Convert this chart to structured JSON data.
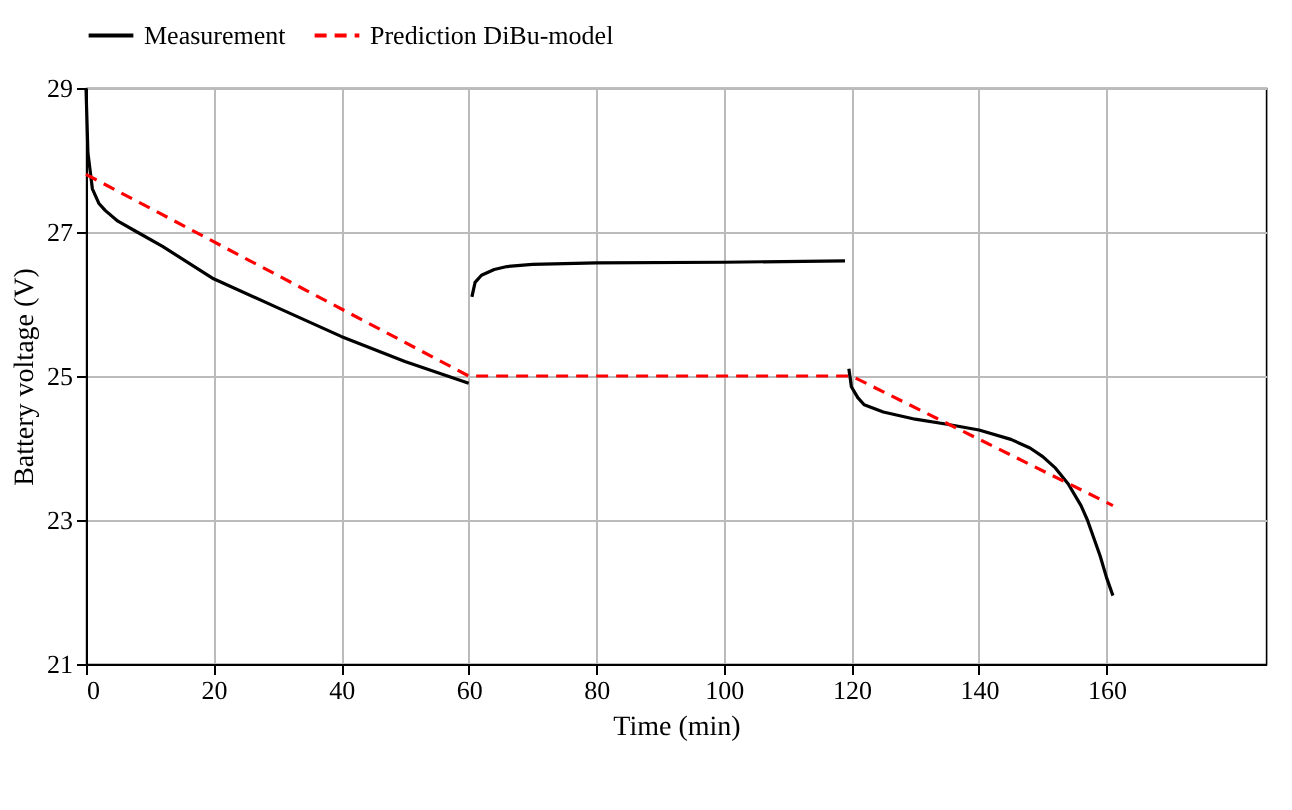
{
  "chart_data": {
    "type": "line",
    "xlabel": "Time (min)",
    "ylabel": "Battery voltage (V)",
    "xlim": [
      0,
      185
    ],
    "ylim": [
      21,
      29
    ],
    "xticks": [
      0,
      20,
      40,
      60,
      80,
      100,
      120,
      140,
      160
    ],
    "yticks": [
      21,
      23,
      25,
      27,
      29
    ],
    "grid": true,
    "legend": "top",
    "series": [
      {
        "name": "Measurement",
        "color": "#000000",
        "line_style": "solid",
        "x": [
          0,
          0.3,
          1,
          2,
          3,
          5,
          8,
          12,
          20,
          30,
          40,
          50,
          60,
          60.1,
          60.5,
          61,
          62,
          64,
          66,
          70,
          80,
          100,
          119,
          119.5,
          119.6,
          120,
          121,
          122,
          125,
          130,
          135,
          140,
          145,
          148,
          150,
          152,
          154,
          156,
          157,
          158,
          159,
          160,
          161
        ],
        "values": [
          29,
          28.1,
          27.6,
          27.4,
          27.3,
          27.15,
          27,
          26.8,
          26.35,
          25.95,
          25.55,
          25.2,
          24.9,
          null,
          26.1,
          26.3,
          26.4,
          26.48,
          26.52,
          26.55,
          26.57,
          26.58,
          26.6,
          null,
          25.1,
          24.85,
          24.7,
          24.6,
          24.5,
          24.4,
          24.33,
          24.25,
          24.12,
          24.0,
          23.88,
          23.72,
          23.5,
          23.2,
          23.0,
          22.75,
          22.5,
          22.2,
          21.95
        ]
      },
      {
        "name": "Prediction DiBu-model",
        "color": "#ff0000",
        "line_style": "dashed",
        "x": [
          0,
          60,
          120,
          161
        ],
        "values": [
          27.8,
          25,
          25,
          23.2
        ]
      }
    ]
  }
}
